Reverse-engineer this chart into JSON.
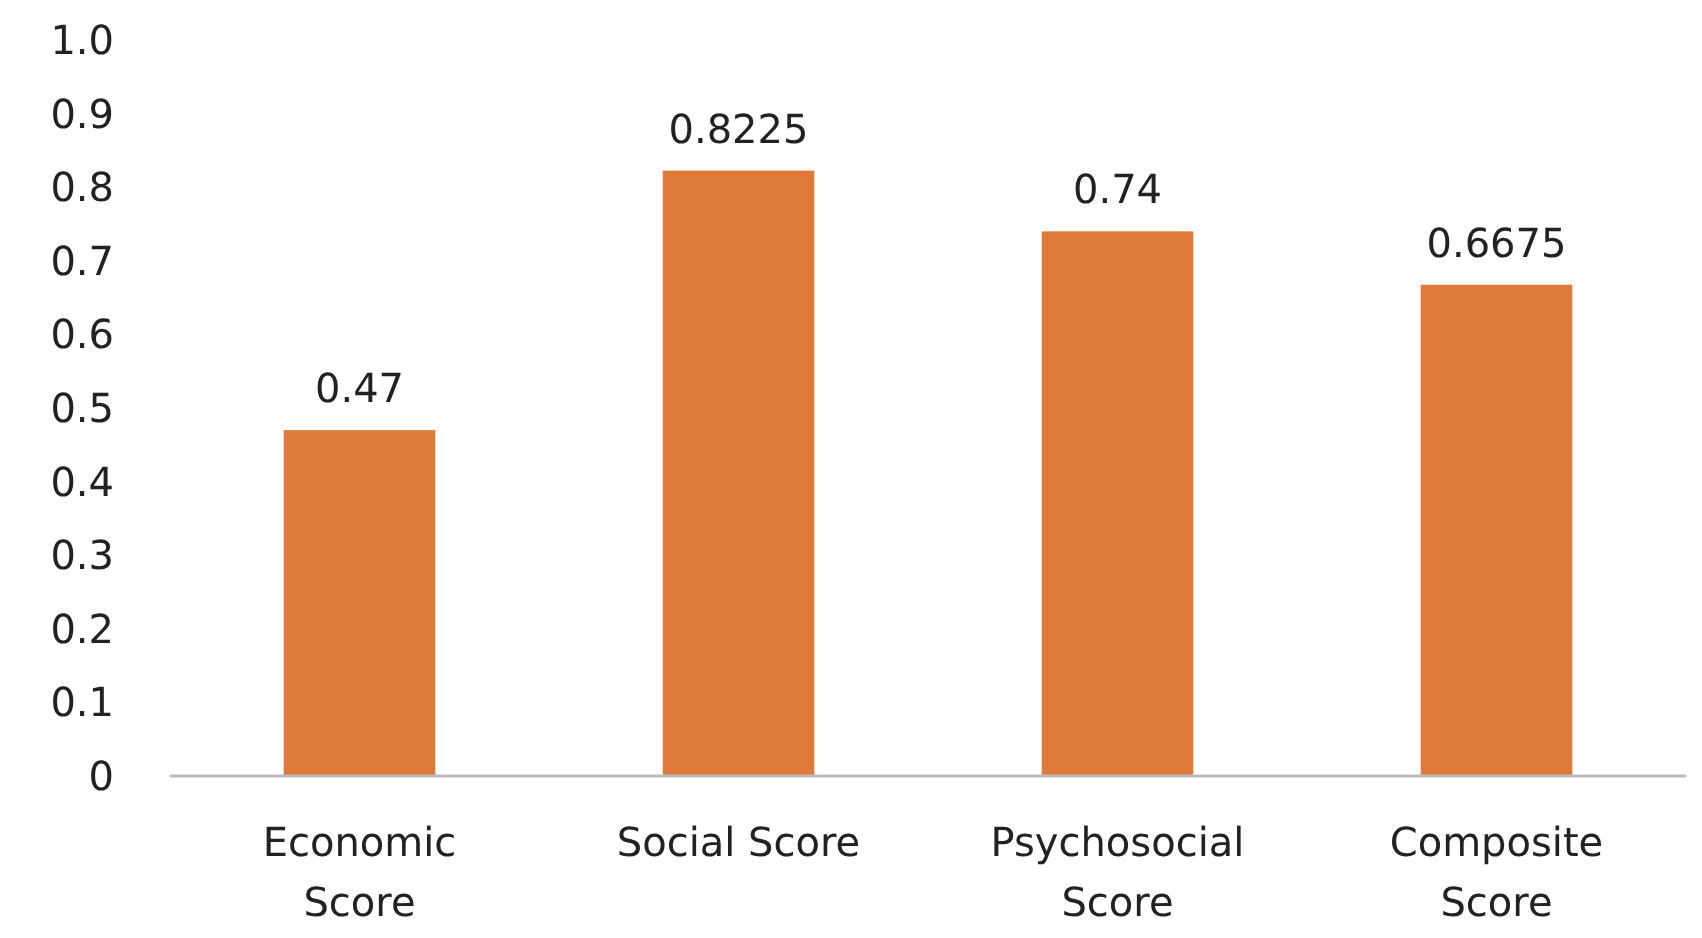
{
  "chart_data": {
    "type": "bar",
    "categories": [
      "Economic Score",
      "Social Score",
      "Psychosocial Score",
      "Composite Score"
    ],
    "values": [
      0.47,
      0.8225,
      0.74,
      0.6675
    ],
    "color": "#e07a3b",
    "ylim": [
      0,
      1
    ],
    "yticks": [
      0,
      0.1,
      0.2,
      0.3,
      0.4,
      0.5,
      0.6,
      0.7,
      0.8,
      0.9,
      {
        "value": 1,
        "label": "1.0"
      }
    ],
    "data_labels": true,
    "grid": false
  }
}
